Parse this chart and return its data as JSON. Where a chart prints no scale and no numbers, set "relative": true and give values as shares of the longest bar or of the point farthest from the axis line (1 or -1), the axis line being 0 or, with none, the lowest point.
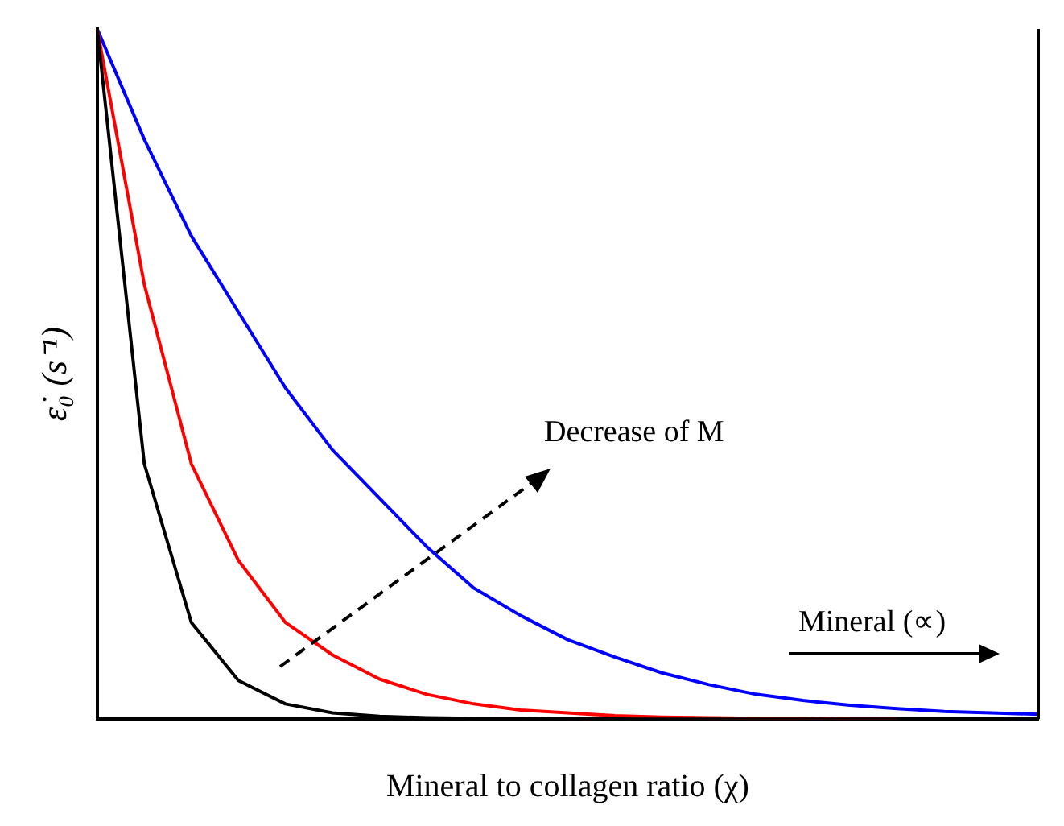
{
  "chart_data": {
    "type": "line",
    "relative": true,
    "xlabel": "Mineral to collagen ratio (χ)",
    "ylabel": "ε̇₀ (s⁻¹)",
    "categories": [
      null,
      null,
      null,
      null,
      null,
      null,
      null,
      null,
      null,
      null,
      null,
      null,
      null,
      null,
      null,
      null,
      null,
      null,
      null,
      null,
      null
    ],
    "series": [
      {
        "color": "#000000",
        "values": [
          1,
          0.37,
          0.14,
          0.056,
          0.022,
          0.009,
          0.004,
          0.002,
          0.001,
          0.001,
          0,
          0,
          0,
          0,
          0,
          0,
          0,
          0,
          0,
          0,
          0
        ]
      },
      {
        "color": "#ff0000",
        "values": [
          1,
          0.63,
          0.37,
          0.23,
          0.14,
          0.093,
          0.058,
          0.036,
          0.022,
          0.013,
          0.009,
          0.005,
          0.003,
          0.002,
          0.001,
          0.001,
          0,
          0,
          null,
          null,
          null
        ]
      },
      {
        "color": "#0000ff",
        "values": [
          1,
          0.84,
          0.7,
          0.59,
          0.48,
          0.39,
          0.32,
          0.25,
          0.19,
          0.15,
          0.115,
          0.09,
          0.067,
          0.05,
          0.036,
          0.027,
          0.02,
          0.015,
          0.011,
          0.009,
          0.007
        ]
      }
    ],
    "annotations": [
      "Decrease of M",
      "Mineral (∝)"
    ],
    "grid": false,
    "legend": false,
    "marker": "none",
    "line_style": "solid"
  }
}
